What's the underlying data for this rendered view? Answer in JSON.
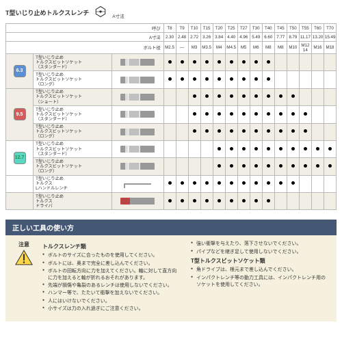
{
  "title": "T型いじり止めトルクスレンチ",
  "hex_label": "A寸法",
  "header_rows": [
    {
      "label": "呼び",
      "cells": [
        "T8",
        "T9",
        "T10",
        "T15",
        "T20",
        "T25",
        "T27",
        "T30",
        "T40",
        "T45",
        "T50",
        "T55",
        "T60",
        "T70"
      ]
    },
    {
      "label": "A寸法",
      "cells": [
        "2.30",
        "2.48",
        "2.72",
        "3.26",
        "3.84",
        "4.40",
        "4.96",
        "5.49",
        "6.60",
        "7.77",
        "8.79",
        "11.17",
        "13.20",
        "15.49"
      ]
    },
    {
      "label": "ボルト径",
      "cells": [
        "M2.5",
        "—",
        "M3",
        "M3.5",
        "M4",
        "M4.5",
        "M5",
        "M6",
        "M8",
        "M8",
        "M10",
        "M12 14",
        "M16",
        "M18"
      ]
    }
  ],
  "badges": [
    {
      "text": "6.3",
      "cls": "badge-blue",
      "span": 2
    },
    {
      "text": "9.5",
      "cls": "badge-red",
      "span": 3
    },
    {
      "text": "12.7",
      "cls": "badge-teal",
      "span": 2
    }
  ],
  "products": [
    {
      "name": "T型いじり止め\nトルクスビットソケット\n（スタンダード）",
      "img": "socket",
      "alt": true,
      "dots": [
        1,
        1,
        1,
        1,
        1,
        1,
        1,
        1,
        1,
        0,
        0,
        0,
        0,
        0
      ]
    },
    {
      "name": "T型いじり止め\nトルクスビットソケット\n（ロング）",
      "img": "socket",
      "alt": false,
      "dots": [
        1,
        1,
        1,
        1,
        1,
        1,
        1,
        1,
        1,
        0,
        0,
        0,
        0,
        0
      ]
    },
    {
      "name": "T型いじり止め\nトルクスビットソケット\n（ショート）",
      "img": "socket",
      "alt": true,
      "dots": [
        0,
        0,
        1,
        1,
        1,
        1,
        1,
        1,
        1,
        1,
        1,
        0,
        0,
        0
      ]
    },
    {
      "name": "T型いじり止め\nトルクスビットソケット\n（スタンダード）",
      "img": "socket",
      "alt": false,
      "dots": [
        0,
        0,
        1,
        1,
        1,
        1,
        1,
        1,
        1,
        1,
        1,
        1,
        0,
        0
      ]
    },
    {
      "name": "T型いじり止め\nトルクスビットソケット\n（ロング）",
      "img": "socket",
      "alt": true,
      "dots": [
        0,
        0,
        1,
        1,
        1,
        1,
        1,
        1,
        1,
        1,
        1,
        1,
        0,
        0
      ]
    },
    {
      "name": "T型いじり止め\nトルクスビットソケット\n（スタンダード）",
      "img": "socket",
      "alt": false,
      "dots": [
        0,
        0,
        0,
        0,
        1,
        1,
        1,
        1,
        1,
        1,
        1,
        1,
        1,
        1
      ]
    },
    {
      "name": "T型いじり止め\nトルクスビットソケット\n（ロング）",
      "img": "socket",
      "alt": true,
      "dots": [
        0,
        0,
        0,
        0,
        1,
        1,
        1,
        1,
        1,
        1,
        1,
        1,
        1,
        1
      ]
    },
    {
      "name": "T型いじり止め\nトルクス\nLハンドルレンチ",
      "img": "lwrench",
      "alt": false,
      "dots": [
        1,
        1,
        1,
        1,
        1,
        1,
        1,
        1,
        1,
        1,
        1,
        0,
        0,
        0
      ]
    },
    {
      "name": "T型いじり止め\nトルクス\nドライバ",
      "img": "driver",
      "alt": true,
      "dots": [
        1,
        1,
        1,
        1,
        1,
        1,
        1,
        1,
        1,
        0,
        0,
        0,
        0,
        0
      ]
    }
  ],
  "usage": {
    "bar": "正しい工具の使い方",
    "warn": "注意",
    "col1_head": "トルクスレンチ類",
    "col1": [
      "ボルトのサイズに合ったものを使用してください。",
      "ボルトには、奥まで完全に差し込んでください。",
      "ボルトの回転方向に力を加えてください。軸に対して直方向に力を加えると軸が折れるおそれがあります。",
      "先端が損傷や亀裂のあるレンチは使用しないでください。",
      "ハンマー等で、たたいて衝撃を加えないでください。",
      "人にはいけないでください。",
      "小サイズは力の入れ過ぎにご注意ください。"
    ],
    "col2a": [
      "強い衝撃を与えたり、落下させないでください。",
      "パイプなどを継ぎ足して使用しないでください。"
    ],
    "col2_head": "T型トルクスビットソケット類",
    "col2b": [
      "角ドライブは、根元まで差し込んでください。",
      "インパクトレンチ等の動力工具には、インパクトレンチ用のソケットを使用してください。"
    ]
  },
  "colors": {
    "navy": "#445876",
    "beige": "#f6f1df",
    "row_alt": "#f1eee6"
  }
}
